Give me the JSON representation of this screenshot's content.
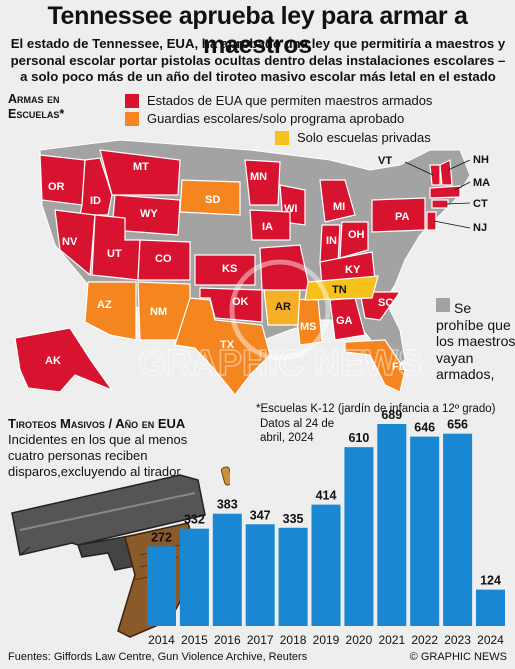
{
  "title": "Tennessee aprueba ley para armar a maestros",
  "subtitle": "El estado de Tennessee, EUA, ha aprobado una ley que permitiría a maestros y personal escolar portar pistolas ocultas dentro delas instalaciones escolares – a solo poco más de un año del tiroteo masivo escolar más letal en el estado",
  "map_section": {
    "title": "Armas en Escuelas*",
    "legend": [
      {
        "label": "Estados de EUA que permiten maestros armados",
        "color": "#d7132f"
      },
      {
        "label": "Guardias escolares/solo programa aprobado",
        "color": "#f5861f"
      },
      {
        "label": "Solo escuelas privadas",
        "color": "#f7c11b"
      }
    ],
    "banned_note": "Se prohíbe que los maestros vayan armados,",
    "banned_color": "#a3a3a3",
    "k12_note": "*Escuelas K-12 (jardín de infancia a 12º grado)",
    "state_labels": [
      "OR",
      "MT",
      "ID",
      "WY",
      "NV",
      "UT",
      "CO",
      "SD",
      "MN",
      "IA",
      "WI",
      "MI",
      "IN",
      "OH",
      "PA",
      "KY",
      "KS",
      "OK",
      "TX",
      "NM",
      "AZ",
      "AR",
      "MS",
      "TN",
      "GA",
      "SC",
      "FL",
      "AK"
    ],
    "callouts": [
      "VT",
      "NH",
      "MA",
      "CT",
      "NJ"
    ]
  },
  "chart_section": {
    "title": "Tiroteos Masivos / Año en EUA",
    "description": "Incidentes en los que al menos cuatro personas reciben disparos,excluyendo al tirador",
    "date_note": "Datos al 24 de abril, 2024"
  },
  "chart_data": {
    "type": "bar",
    "title": "Tiroteos Masivos / Año en EUA",
    "categories": [
      "2014",
      "2015",
      "2016",
      "2017",
      "2018",
      "2019",
      "2020",
      "2021",
      "2022",
      "2023",
      "2024"
    ],
    "values": [
      272,
      332,
      383,
      347,
      335,
      414,
      610,
      689,
      646,
      656,
      124
    ],
    "bar_color": "#1a87d3",
    "xlabel": "",
    "ylabel": ""
  },
  "footer": {
    "sources": "Fuentes: Giffords Law Centre, Gun Violence Archive, Reuters",
    "credit": "© GRAPHIC NEWS"
  },
  "watermark": "GRAPHIC NEWS"
}
